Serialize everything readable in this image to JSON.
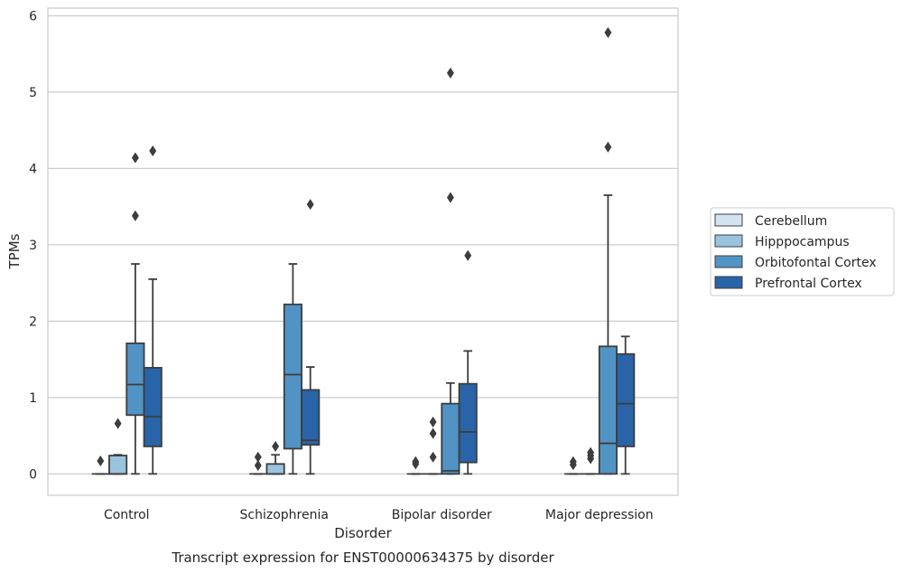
{
  "chart_data": {
    "type": "box",
    "title": "Transcript expression for ENST00000634375 by disorder",
    "xlabel": "Disorder",
    "ylabel": "TPMs",
    "ylim": [
      -0.28,
      6.1
    ],
    "yticks": [
      0,
      1,
      2,
      3,
      4,
      5,
      6
    ],
    "grid": true,
    "legend_position": "right",
    "categories": [
      "Control",
      "Schizophrenia",
      "Bipolar disorder",
      "Major depression"
    ],
    "series": [
      {
        "name": "Cerebellum",
        "color": "#d4e3f0",
        "boxes": [
          {
            "whislo": 0,
            "q1": 0,
            "med": 0,
            "q3": 0,
            "whishi": 0,
            "fliers": [
              0.17
            ]
          },
          {
            "whislo": 0,
            "q1": 0,
            "med": 0,
            "q3": 0,
            "whishi": 0,
            "fliers": [
              0.11,
              0.22
            ]
          },
          {
            "whislo": 0,
            "q1": 0,
            "med": 0,
            "q3": 0,
            "whishi": 0,
            "fliers": [
              0.13,
              0.16
            ]
          },
          {
            "whislo": 0,
            "q1": 0,
            "med": 0,
            "q3": 0,
            "whishi": 0,
            "fliers": [
              0.12,
              0.16
            ]
          }
        ]
      },
      {
        "name": "Hipppocampus",
        "color": "#9ac3de",
        "boxes": [
          {
            "whislo": 0,
            "q1": 0,
            "med": 0,
            "q3": 0.24,
            "whishi": 0.25,
            "fliers": [
              0.66
            ]
          },
          {
            "whislo": 0,
            "q1": 0,
            "med": 0,
            "q3": 0.13,
            "whishi": 0.25,
            "fliers": [
              0.36
            ]
          },
          {
            "whislo": 0,
            "q1": 0,
            "med": 0,
            "q3": 0,
            "whishi": 0,
            "fliers": [
              0.22,
              0.53,
              0.68
            ]
          },
          {
            "whislo": 0,
            "q1": 0,
            "med": 0,
            "q3": 0,
            "whishi": 0,
            "fliers": [
              0.2,
              0.24,
              0.28
            ]
          }
        ]
      },
      {
        "name": "Orbitofontal Cortex",
        "color": "#5293c5",
        "boxes": [
          {
            "whislo": 0,
            "q1": 0.77,
            "med": 1.17,
            "q3": 1.71,
            "whishi": 2.75,
            "fliers": [
              3.38,
              4.14
            ]
          },
          {
            "whislo": 0,
            "q1": 0.33,
            "med": 1.3,
            "q3": 2.22,
            "whishi": 2.75,
            "fliers": []
          },
          {
            "whislo": 0,
            "q1": 0,
            "med": 0.04,
            "q3": 0.92,
            "whishi": 1.19,
            "fliers": [
              3.62,
              5.25
            ]
          },
          {
            "whislo": 0,
            "q1": 0,
            "med": 0.4,
            "q3": 1.67,
            "whishi": 3.65,
            "fliers": [
              4.28,
              5.78
            ]
          }
        ]
      },
      {
        "name": "Prefrontal Cortex",
        "color": "#2864a7",
        "boxes": [
          {
            "whislo": 0,
            "q1": 0.36,
            "med": 0.75,
            "q3": 1.39,
            "whishi": 2.55,
            "fliers": [
              4.23
            ]
          },
          {
            "whislo": 0,
            "q1": 0.38,
            "med": 0.44,
            "q3": 1.1,
            "whishi": 1.4,
            "fliers": [
              3.53
            ]
          },
          {
            "whislo": 0,
            "q1": 0.15,
            "med": 0.55,
            "q3": 1.18,
            "whishi": 1.61,
            "fliers": [
              2.86
            ]
          },
          {
            "whislo": 0,
            "q1": 0.36,
            "med": 0.92,
            "q3": 1.57,
            "whishi": 1.8,
            "fliers": []
          }
        ]
      }
    ]
  }
}
